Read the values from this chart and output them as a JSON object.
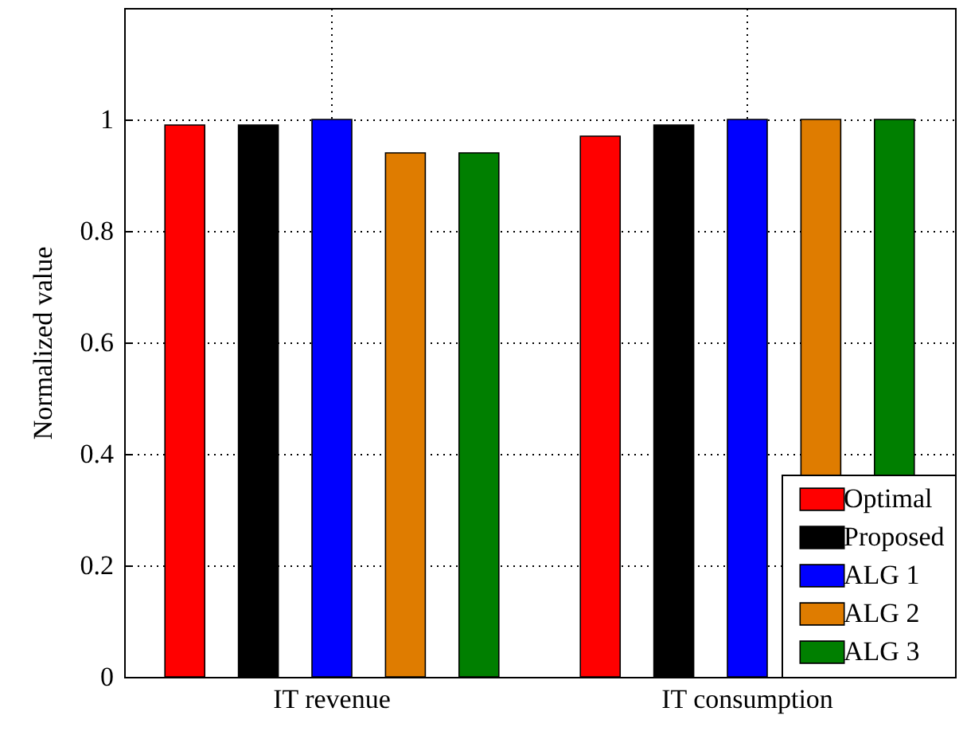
{
  "chart_data": {
    "type": "bar",
    "ylabel": "Normalized value",
    "categories": [
      "IT revenue",
      "IT consumption"
    ],
    "series": [
      {
        "name": "Optimal",
        "color": "#ff0000",
        "values": [
          0.99,
          0.97
        ]
      },
      {
        "name": "Proposed",
        "color": "#000000",
        "values": [
          0.99,
          0.99
        ]
      },
      {
        "name": "ALG 1",
        "color": "#0000ff",
        "values": [
          1,
          1
        ]
      },
      {
        "name": "ALG 2",
        "color": "#df7c00",
        "values": [
          0.94,
          1
        ]
      },
      {
        "name": "ALG 3",
        "color": "#007f00",
        "values": [
          0.94,
          1
        ]
      }
    ],
    "ylim": [
      0,
      1.2
    ],
    "yticks": [
      0,
      0.2,
      0.4,
      0.6,
      0.8,
      1
    ],
    "grid": true,
    "legend": "bottom right"
  }
}
